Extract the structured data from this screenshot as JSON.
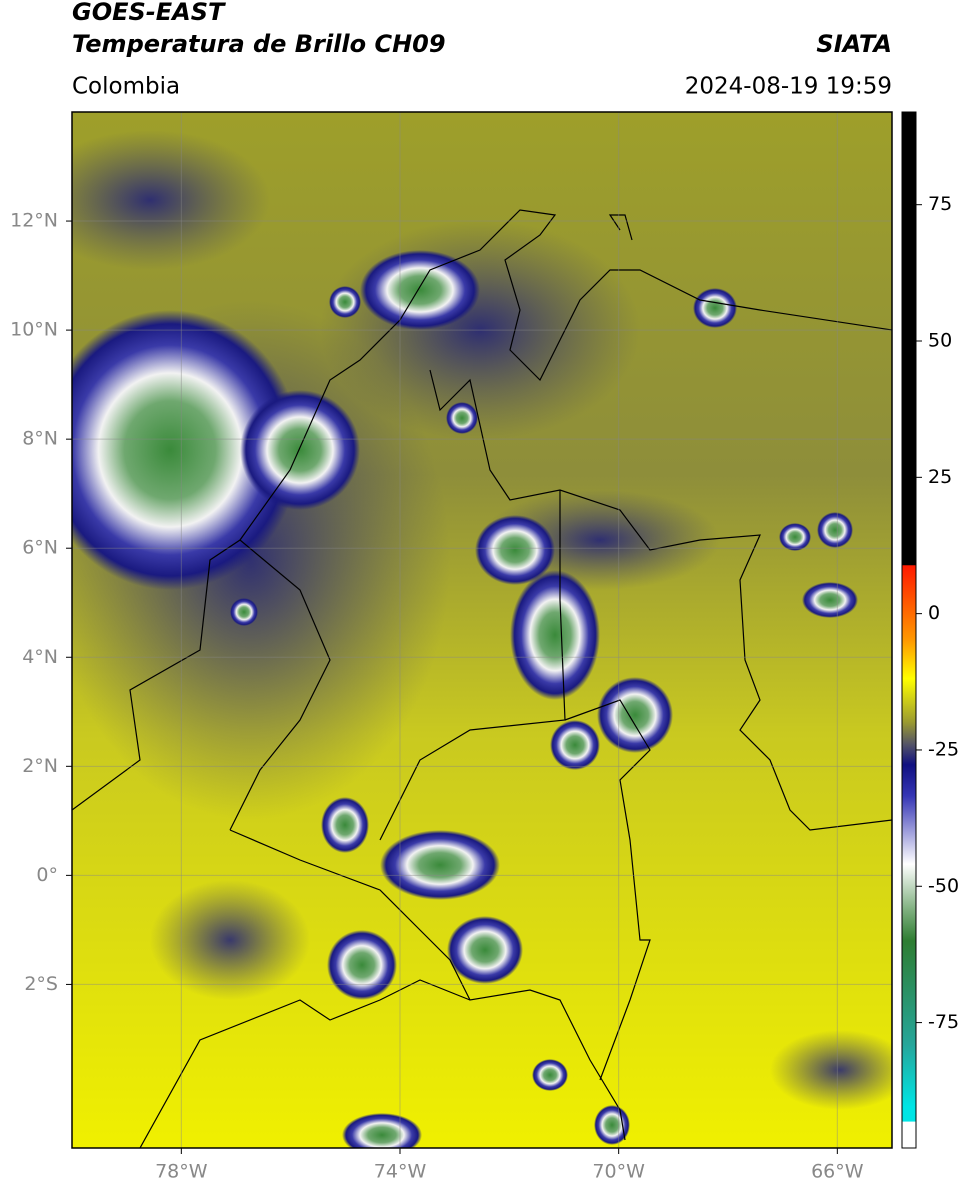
{
  "header": {
    "title": "GOES-EAST",
    "subtitle": "Temperatura de Brillo CH09",
    "region": "Colombia",
    "source": "SIATA",
    "datetime": "2024-08-19 19:59"
  },
  "map": {
    "xlim": [
      -80,
      -65
    ],
    "ylim": [
      -5,
      14
    ],
    "xticks": [
      {
        "value": -78,
        "label": "78°W"
      },
      {
        "value": -74,
        "label": "74°W"
      },
      {
        "value": -70,
        "label": "70°W"
      },
      {
        "value": -66,
        "label": "66°W"
      }
    ],
    "yticks": [
      {
        "value": 12,
        "label": "12°N"
      },
      {
        "value": 10,
        "label": "10°N"
      },
      {
        "value": 8,
        "label": "8°N"
      },
      {
        "value": 6,
        "label": "6°N"
      },
      {
        "value": 4,
        "label": "4°N"
      },
      {
        "value": 2,
        "label": "2°N"
      },
      {
        "value": 0,
        "label": "0°"
      },
      {
        "value": -2,
        "label": "2°S"
      }
    ],
    "grid": true
  },
  "colorbar": {
    "lim": [
      -98,
      92
    ],
    "ticks": [
      75,
      50,
      25,
      0,
      -25,
      -50,
      -75
    ]
  }
}
